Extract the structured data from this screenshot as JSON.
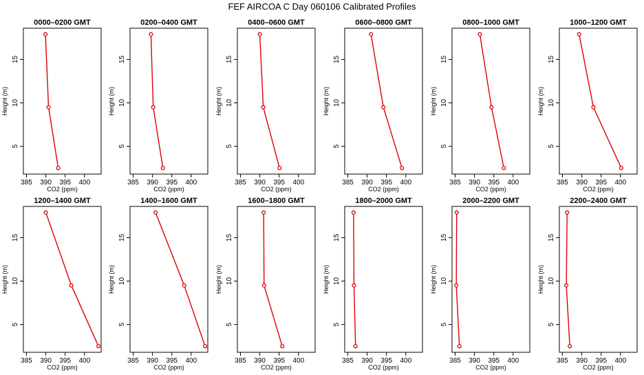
{
  "figure": {
    "title": "FEF AIRCOA C  Day 060106  Calibrated Profiles"
  },
  "chart_data": [
    {
      "type": "line",
      "title": "0000–0200 GMT",
      "xlabel": "CO2 (ppm)",
      "ylabel": "Height (m)",
      "xlim": [
        384.2,
        404.3
      ],
      "ylim": [
        1.8,
        18.6
      ],
      "x_ticks": [
        385,
        390,
        395,
        400
      ],
      "y_ticks": [
        5,
        10,
        15
      ],
      "series": [
        {
          "x": [
            389.9,
            390.7,
            393.2
          ],
          "y": [
            17.9,
            9.5,
            2.5
          ]
        }
      ],
      "color": "#dd0000"
    },
    {
      "type": "line",
      "title": "0200–0400 GMT",
      "xlabel": "CO2 (ppm)",
      "ylabel": "Height (m)",
      "xlim": [
        384.2,
        404.3
      ],
      "ylim": [
        1.8,
        18.6
      ],
      "x_ticks": [
        385,
        390,
        395,
        400
      ],
      "y_ticks": [
        5,
        10,
        15
      ],
      "series": [
        {
          "x": [
            389.6,
            390.2,
            392.7
          ],
          "y": [
            17.9,
            9.5,
            2.5
          ]
        }
      ],
      "color": "#dd0000"
    },
    {
      "type": "line",
      "title": "0400–0600 GMT",
      "xlabel": "CO2 (ppm)",
      "ylabel": "Height (m)",
      "xlim": [
        384.2,
        404.3
      ],
      "ylim": [
        1.8,
        18.6
      ],
      "x_ticks": [
        385,
        390,
        395,
        400
      ],
      "y_ticks": [
        5,
        10,
        15
      ],
      "series": [
        {
          "x": [
            390.0,
            390.9,
            395.1
          ],
          "y": [
            17.9,
            9.5,
            2.5
          ]
        }
      ],
      "color": "#dd0000"
    },
    {
      "type": "line",
      "title": "0600–0800 GMT",
      "xlabel": "CO2 (ppm)",
      "ylabel": "Height (m)",
      "xlim": [
        384.2,
        404.3
      ],
      "ylim": [
        1.8,
        18.6
      ],
      "x_ticks": [
        385,
        390,
        395,
        400
      ],
      "y_ticks": [
        5,
        10,
        15
      ],
      "series": [
        {
          "x": [
            391.0,
            394.2,
            399.0
          ],
          "y": [
            17.9,
            9.5,
            2.5
          ]
        }
      ],
      "color": "#dd0000"
    },
    {
      "type": "line",
      "title": "0800–1000 GMT",
      "xlabel": "CO2 (ppm)",
      "ylabel": "Height (m)",
      "xlim": [
        384.2,
        404.3
      ],
      "ylim": [
        1.8,
        18.6
      ],
      "x_ticks": [
        385,
        390,
        395,
        400
      ],
      "y_ticks": [
        5,
        10,
        15
      ],
      "series": [
        {
          "x": [
            391.4,
            394.4,
            397.6
          ],
          "y": [
            17.9,
            9.5,
            2.5
          ]
        }
      ],
      "color": "#dd0000"
    },
    {
      "type": "line",
      "title": "1000–1200 GMT",
      "xlabel": "CO2 (ppm)",
      "ylabel": "Height (m)",
      "xlim": [
        384.2,
        404.3
      ],
      "ylim": [
        1.8,
        18.6
      ],
      "x_ticks": [
        385,
        390,
        395,
        400
      ],
      "y_ticks": [
        5,
        10,
        15
      ],
      "series": [
        {
          "x": [
            389.3,
            393.0,
            400.2
          ],
          "y": [
            17.9,
            9.5,
            2.5
          ]
        }
      ],
      "color": "#dd0000"
    },
    {
      "type": "line",
      "title": "1200–1400 GMT",
      "xlabel": "CO2 (ppm)",
      "ylabel": "Height (m)",
      "xlim": [
        384.2,
        404.3
      ],
      "ylim": [
        1.8,
        18.6
      ],
      "x_ticks": [
        385,
        390,
        395,
        400
      ],
      "y_ticks": [
        5,
        10,
        15
      ],
      "series": [
        {
          "x": [
            390.0,
            396.6,
            403.6
          ],
          "y": [
            17.9,
            9.5,
            2.5
          ]
        }
      ],
      "color": "#dd0000"
    },
    {
      "type": "line",
      "title": "1400–1600 GMT",
      "xlabel": "CO2 (ppm)",
      "ylabel": "Height (m)",
      "xlim": [
        384.2,
        404.3
      ],
      "ylim": [
        1.8,
        18.6
      ],
      "x_ticks": [
        385,
        390,
        395,
        400
      ],
      "y_ticks": [
        5,
        10,
        15
      ],
      "series": [
        {
          "x": [
            390.8,
            398.2,
            403.6
          ],
          "y": [
            17.9,
            9.5,
            2.5
          ]
        }
      ],
      "color": "#dd0000"
    },
    {
      "type": "line",
      "title": "1600–1800 GMT",
      "xlabel": "CO2 (ppm)",
      "ylabel": "Height (m)",
      "xlim": [
        384.2,
        404.3
      ],
      "ylim": [
        1.8,
        18.6
      ],
      "x_ticks": [
        385,
        390,
        395,
        400
      ],
      "y_ticks": [
        5,
        10,
        15
      ],
      "series": [
        {
          "x": [
            391.0,
            391.1,
            395.8
          ],
          "y": [
            17.9,
            9.5,
            2.5
          ]
        }
      ],
      "color": "#dd0000"
    },
    {
      "type": "line",
      "title": "1800–2000 GMT",
      "xlabel": "CO2 (ppm)",
      "ylabel": "Height (m)",
      "xlim": [
        384.2,
        404.3
      ],
      "ylim": [
        1.8,
        18.6
      ],
      "x_ticks": [
        385,
        390,
        395,
        400
      ],
      "y_ticks": [
        5,
        10,
        15
      ],
      "series": [
        {
          "x": [
            386.5,
            386.6,
            387.0
          ],
          "y": [
            17.9,
            9.5,
            2.5
          ]
        }
      ],
      "color": "#dd0000"
    },
    {
      "type": "line",
      "title": "2000–2200 GMT",
      "xlabel": "CO2 (ppm)",
      "ylabel": "Height (m)",
      "xlim": [
        384.2,
        404.3
      ],
      "ylim": [
        1.8,
        18.6
      ],
      "x_ticks": [
        385,
        390,
        395,
        400
      ],
      "y_ticks": [
        5,
        10,
        15
      ],
      "series": [
        {
          "x": [
            385.4,
            385.3,
            386.1
          ],
          "y": [
            17.9,
            9.5,
            2.5
          ]
        }
      ],
      "color": "#dd0000"
    },
    {
      "type": "line",
      "title": "2200–2400 GMT",
      "xlabel": "CO2 (ppm)",
      "ylabel": "Height (m)",
      "xlim": [
        384.2,
        404.3
      ],
      "ylim": [
        1.8,
        18.6
      ],
      "x_ticks": [
        385,
        390,
        395,
        400
      ],
      "y_ticks": [
        5,
        10,
        15
      ],
      "series": [
        {
          "x": [
            386.2,
            386.0,
            386.9
          ],
          "y": [
            17.9,
            9.5,
            2.5
          ]
        }
      ],
      "color": "#dd0000"
    }
  ]
}
